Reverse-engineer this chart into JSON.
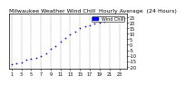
{
  "title": "Milwaukee Weather Wind Chill  Hourly Average  (24 Hours)",
  "background_color": "#ffffff",
  "plot_bg_color": "#ffffff",
  "line_color": "#0000ff",
  "grid_color": "#888888",
  "hours": [
    1,
    2,
    3,
    4,
    5,
    6,
    7,
    8,
    9,
    10,
    11,
    12,
    13,
    14,
    15,
    16,
    17,
    18,
    19,
    20,
    21,
    22,
    23,
    24
  ],
  "wind_chill": [
    -18,
    -17,
    -16,
    -14,
    -13,
    -12,
    -10,
    -8,
    -4,
    -1,
    3,
    6,
    9,
    12,
    15,
    17,
    18,
    19,
    20,
    21,
    22,
    22,
    23,
    24
  ],
  "ylim": [
    -22,
    28
  ],
  "xlim": [
    0.5,
    24.5
  ],
  "ytick_values": [
    25,
    20,
    15,
    10,
    5,
    0,
    -5,
    -10,
    -15,
    -20
  ],
  "ytick_labels": [
    "25",
    "20",
    "15",
    "10",
    "5",
    "0",
    "-5",
    "-10",
    "-15",
    "-20"
  ],
  "xtick_positions": [
    1,
    3,
    5,
    7,
    9,
    11,
    13,
    15,
    17,
    19,
    21,
    23
  ],
  "xtick_labels": [
    "1",
    "3",
    "5",
    "7",
    "9",
    "11",
    "13",
    "15",
    "17",
    "19",
    "21",
    "23"
  ],
  "vgrid_positions": [
    1,
    3,
    5,
    7,
    9,
    11,
    13,
    15,
    17,
    19,
    21,
    23
  ],
  "legend_label": "Wind Chill",
  "legend_color": "#0000ff",
  "title_fontsize": 4.5,
  "tick_fontsize": 3.5,
  "marker_size": 1.5
}
